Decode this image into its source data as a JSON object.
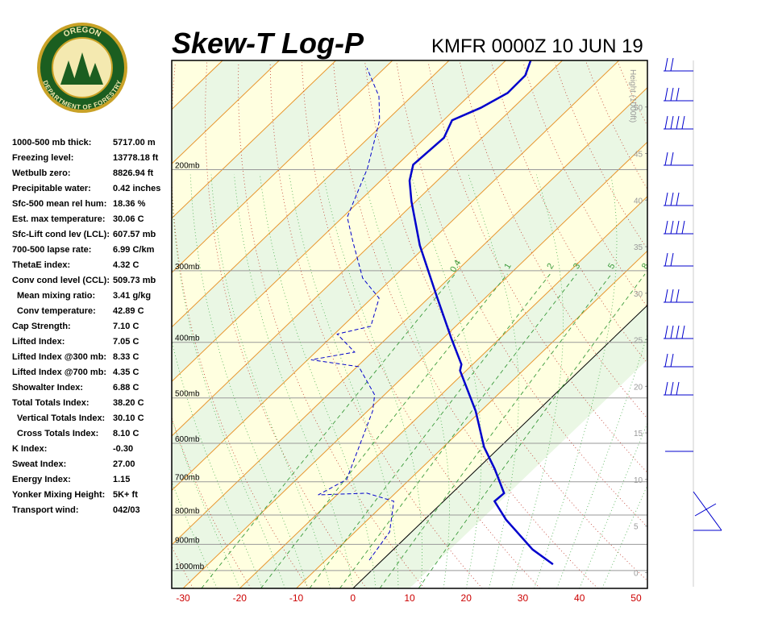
{
  "logo": {
    "top": "OREGON",
    "bottom": "DEPARTMENT OF FORESTRY"
  },
  "indices": {
    "rows": [
      [
        "1000-500 mb thick:",
        "5717.00 m"
      ],
      [
        "Freezing level:",
        "13778.18 ft"
      ],
      [
        "Wetbulb zero:",
        "8826.94 ft"
      ],
      [
        "Precipitable water:",
        "0.42 inches"
      ],
      [
        "Sfc-500 mean rel hum:",
        "18.36 %"
      ],
      [
        "Est. max temperature:",
        "30.06 C"
      ],
      [
        "Sfc-Lift cond lev (LCL):",
        "607.57 mb"
      ],
      [
        "700-500 lapse rate:",
        "6.99 C/km"
      ],
      [
        "ThetaE index:",
        "4.32 C"
      ],
      [
        "Conv cond level (CCL):",
        "509.73 mb"
      ],
      [
        "Mean mixing ratio:",
        "3.41 g/kg"
      ],
      [
        "Conv temperature:",
        "42.89 C"
      ],
      [
        "Cap Strength:",
        "7.10 C"
      ],
      [
        "Lifted Index:",
        "7.05 C"
      ],
      [
        "Lifted Index @300 mb:",
        "8.33 C"
      ],
      [
        "Lifted Index @700 mb:",
        "4.35 C"
      ],
      [
        "Showalter Index:",
        "6.88 C"
      ],
      [
        "Total Totals Index:",
        "38.20 C"
      ],
      [
        "Vertical Totals Index:",
        "30.10 C"
      ],
      [
        "Cross Totals Index:",
        "8.10 C"
      ],
      [
        "K Index:",
        "-0.30"
      ],
      [
        "Sweat Index:",
        "27.00"
      ],
      [
        "Energy Index:",
        "1.15"
      ],
      [
        "Yonker Mixing Height:",
        "5K+ ft"
      ],
      [
        "Transport wind:",
        "042/03"
      ]
    ]
  },
  "chart_data": {
    "type": "skewt",
    "title": "Skew-T Log-P",
    "subtitle": "KMFR 0000Z 10 JUN 19",
    "xlim": [
      -32,
      52
    ],
    "xticks": [
      -30,
      -20,
      -10,
      0,
      10,
      20,
      30,
      40,
      50
    ],
    "ylim": [
      1074,
      129
    ],
    "log_y": true,
    "yticks": [
      {
        "value": 1000,
        "label": "1000mb"
      },
      {
        "value": 900,
        "label": "900mb"
      },
      {
        "value": 800,
        "label": "800mb"
      },
      {
        "value": 700,
        "label": "700mb"
      },
      {
        "value": 600,
        "label": "600mb"
      },
      {
        "value": 500,
        "label": "500mb"
      },
      {
        "value": 400,
        "label": "400mb"
      },
      {
        "value": 300,
        "label": "300mb"
      },
      {
        "value": 200,
        "label": "200mb"
      }
    ],
    "y2label": "Height (1000ft)",
    "y2lim": [
      -1.7,
      55.0
    ],
    "y2ticks": [
      0,
      5,
      10,
      15,
      20,
      25,
      30,
      35,
      40,
      45,
      50
    ],
    "mixing_ratio_lines": [
      {
        "value": 0.4,
        "label": "0.4"
      },
      1,
      2,
      3,
      5,
      8
    ],
    "series": [
      {
        "color": "#0000cc",
        "dashed": false,
        "pressure": [
          975,
          919,
          815,
          757,
          733,
          665,
          609,
          527,
          448,
          437,
          394,
          329,
          271,
          227,
          209,
          196,
          176,
          164,
          156,
          147,
          137,
          129
        ],
        "values": [
          30.9,
          24.6,
          14.4,
          9.0,
          9.2,
          3.1,
          -2.8,
          -10.9,
          -21.1,
          -22.0,
          -28.5,
          -39.5,
          -51.2,
          -60.8,
          -64.9,
          -67.2,
          -66.7,
          -68.5,
          -65.7,
          -63.7,
          -63.8,
          -65.6
        ]
      },
      {
        "color": "#0000cc",
        "dashed": true,
        "pressure": [
          959,
          856,
          757,
          733,
          738,
          694,
          609,
          527,
          494,
          441,
          429,
          416,
          387,
          375,
          335,
          309,
          267,
          242,
          199,
          164,
          149,
          133
        ],
        "values": [
          -2.3,
          -3.9,
          -8.8,
          -15.0,
          -23.3,
          -21.1,
          -24.9,
          -29.1,
          -31.7,
          -39.7,
          -49.4,
          -43.1,
          -49.5,
          -45.0,
          -48.7,
          -55.3,
          -63.7,
          -69.2,
          -74.6,
          -81.3,
          -85.8,
          -93.1
        ]
      }
    ]
  }
}
